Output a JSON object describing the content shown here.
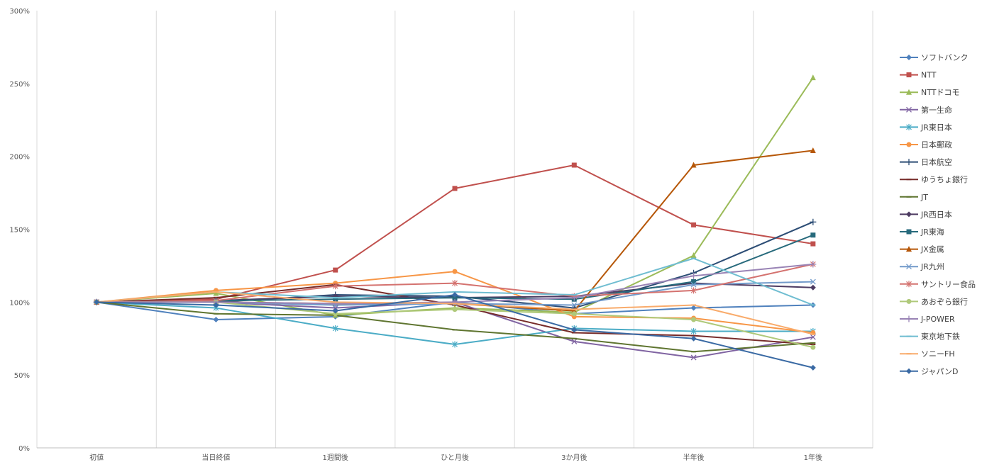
{
  "chart_data": {
    "type": "line",
    "title": "",
    "xlabel": "",
    "ylabel": "",
    "categories": [
      "初値",
      "当日終値",
      "1週間後",
      "ひと月後",
      "3か月後",
      "半年後",
      "1年後"
    ],
    "y_ticks": [
      "0%",
      "50%",
      "100%",
      "150%",
      "200%",
      "250%",
      "300%"
    ],
    "ylim": [
      0,
      300
    ],
    "y_unit": "%",
    "grid": "vertical",
    "legend_position": "right",
    "series": [
      {
        "name": "ソフトバンク",
        "color": "#4f81bd",
        "marker": "diamond",
        "values": [
          100,
          88,
          90,
          100,
          92,
          96,
          98
        ]
      },
      {
        "name": "NTT",
        "color": "#c0504d",
        "marker": "square",
        "values": [
          100,
          102,
          122,
          178,
          194,
          153,
          140
        ]
      },
      {
        "name": "NTTドコモ",
        "color": "#9bbb59",
        "marker": "triangle",
        "values": [
          100,
          106,
          91,
          96,
          93,
          132,
          254
        ]
      },
      {
        "name": "第一生命",
        "color": "#8064a2",
        "marker": "x",
        "values": [
          100,
          100,
          96,
          100,
          73,
          62,
          76
        ]
      },
      {
        "name": "JR東日本",
        "color": "#4bacc6",
        "marker": "star",
        "values": [
          100,
          96,
          82,
          71,
          82,
          80,
          80
        ]
      },
      {
        "name": "日本郵政",
        "color": "#f79646",
        "marker": "circle",
        "values": [
          100,
          108,
          113,
          121,
          90,
          89,
          79
        ]
      },
      {
        "name": "日本航空",
        "color": "#2c4d75",
        "marker": "plus",
        "values": [
          100,
          100,
          105,
          104,
          96,
          120,
          155
        ]
      },
      {
        "name": "ゆうちょ銀行",
        "color": "#772c2a",
        "marker": "dash",
        "values": [
          100,
          103,
          112,
          98,
          79,
          77,
          71
        ]
      },
      {
        "name": "JT",
        "color": "#5f7530",
        "marker": "dash",
        "values": [
          100,
          92,
          91,
          81,
          75,
          66,
          72
        ]
      },
      {
        "name": "JR西日本",
        "color": "#4d3b62",
        "marker": "diamond",
        "values": [
          100,
          101,
          104,
          103,
          104,
          113,
          110
        ]
      },
      {
        "name": "JR東海",
        "color": "#276a7c",
        "marker": "square",
        "values": [
          100,
          101,
          102,
          103,
          102,
          114,
          146
        ]
      },
      {
        "name": "JX金属",
        "color": "#b65708",
        "marker": "triangle",
        "values": [
          100,
          100,
          99,
          99,
          94,
          194,
          204
        ]
      },
      {
        "name": "JR九州",
        "color": "#729aca",
        "marker": "x",
        "values": [
          100,
          100,
          98,
          99,
          98,
          112,
          114
        ]
      },
      {
        "name": "サントリー食品",
        "color": "#d4726f",
        "marker": "star",
        "values": [
          100,
          101,
          111,
          113,
          104,
          108,
          126
        ]
      },
      {
        "name": "あおぞら銀行",
        "color": "#afc97a",
        "marker": "circle",
        "values": [
          100,
          100,
          92,
          95,
          92,
          88,
          69
        ]
      },
      {
        "name": "J-POWER",
        "color": "#9983b5",
        "marker": "plus",
        "values": [
          100,
          100,
          99,
          100,
          103,
          118,
          126
        ]
      },
      {
        "name": "東京地下鉄",
        "color": "#6fbdd1",
        "marker": "dash",
        "values": [
          100,
          107,
          103,
          107,
          105,
          130,
          98
        ]
      },
      {
        "name": "ソニーFH",
        "color": "#f9ab6b",
        "marker": "dash",
        "values": [
          100,
          107,
          100,
          99,
          95,
          98,
          78
        ]
      },
      {
        "name": "ジャパンD",
        "color": "#3a6aa4",
        "marker": "diamond",
        "values": [
          100,
          98,
          94,
          105,
          81,
          75,
          55
        ]
      }
    ]
  }
}
